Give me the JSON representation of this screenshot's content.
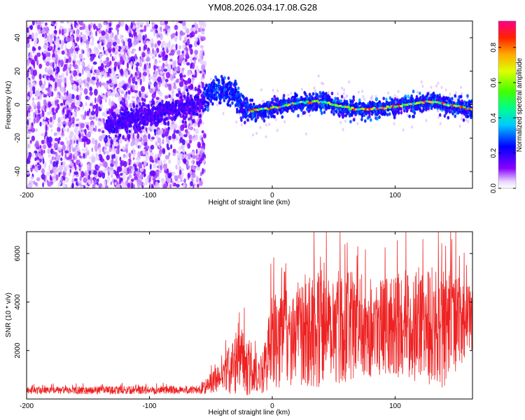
{
  "chart_data": [
    {
      "type": "heatmap",
      "title": "YM08.2026.034.17.08.G28",
      "xlabel": "Height of straight line (km)",
      "ylabel": "Frequency (Hz)",
      "xlim": [
        -200,
        163
      ],
      "ylim": [
        -50,
        50
      ],
      "x_ticks": [
        -200,
        -100,
        0,
        100
      ],
      "y_ticks": [
        -40,
        -20,
        0,
        20,
        40
      ],
      "colorbar": {
        "label": "Normalized spectral amplitude",
        "range": [
          0.0,
          0.95
        ],
        "ticks": [
          "0.0",
          "0.2",
          "0.4",
          "0.6",
          "0.8"
        ]
      },
      "ridge": {
        "description_points": [
          {
            "x": -200,
            "y": -15
          },
          {
            "x": -130,
            "y": -12
          },
          {
            "x": -100,
            "y": -6
          },
          {
            "x": -70,
            "y": -2
          },
          {
            "x": -55,
            "y": 3
          },
          {
            "x": -50,
            "y": 8
          },
          {
            "x": -40,
            "y": 9
          },
          {
            "x": -30,
            "y": 6
          },
          {
            "x": -25,
            "y": -2
          },
          {
            "x": -20,
            "y": -4
          },
          {
            "x": 0,
            "y": -2
          },
          {
            "x": 20,
            "y": 1
          },
          {
            "x": 40,
            "y": 2
          },
          {
            "x": 55,
            "y": -1
          },
          {
            "x": 70,
            "y": -3
          },
          {
            "x": 90,
            "y": -2
          },
          {
            "x": 110,
            "y": 0
          },
          {
            "x": 130,
            "y": 2
          },
          {
            "x": 150,
            "y": -1
          },
          {
            "x": 163,
            "y": -3
          }
        ],
        "noise_cutoff_x": -55
      }
    },
    {
      "type": "line",
      "xlabel": "Height of straight line (km)",
      "ylabel": "SNR (10 * v/v)",
      "xlim": [
        -200,
        163
      ],
      "ylim": [
        0,
        6900
      ],
      "x_ticks": [
        -200,
        -100,
        0,
        100
      ],
      "y_ticks": [
        2000,
        4000,
        6000
      ],
      "series": [
        {
          "name": "SNR",
          "color": "#ee2222",
          "envelope": [
            {
              "x": -200,
              "mean": 350,
              "amp": 150
            },
            {
              "x": -60,
              "mean": 380,
              "amp": 180
            },
            {
              "x": -40,
              "mean": 900,
              "amp": 700
            },
            {
              "x": -28,
              "mean": 1700,
              "amp": 1500
            },
            {
              "x": -20,
              "mean": 1400,
              "amp": 1300
            },
            {
              "x": -10,
              "mean": 900,
              "amp": 700
            },
            {
              "x": 0,
              "mean": 2300,
              "amp": 2000
            },
            {
              "x": 20,
              "mean": 2700,
              "amp": 2100
            },
            {
              "x": 40,
              "mean": 3200,
              "amp": 2800
            },
            {
              "x": 60,
              "mean": 3000,
              "amp": 2300
            },
            {
              "x": 90,
              "mean": 3000,
              "amp": 2000
            },
            {
              "x": 120,
              "mean": 3100,
              "amp": 2400
            },
            {
              "x": 140,
              "mean": 3000,
              "amp": 2600
            },
            {
              "x": 163,
              "mean": 3300,
              "amp": 1300
            }
          ]
        }
      ]
    }
  ]
}
